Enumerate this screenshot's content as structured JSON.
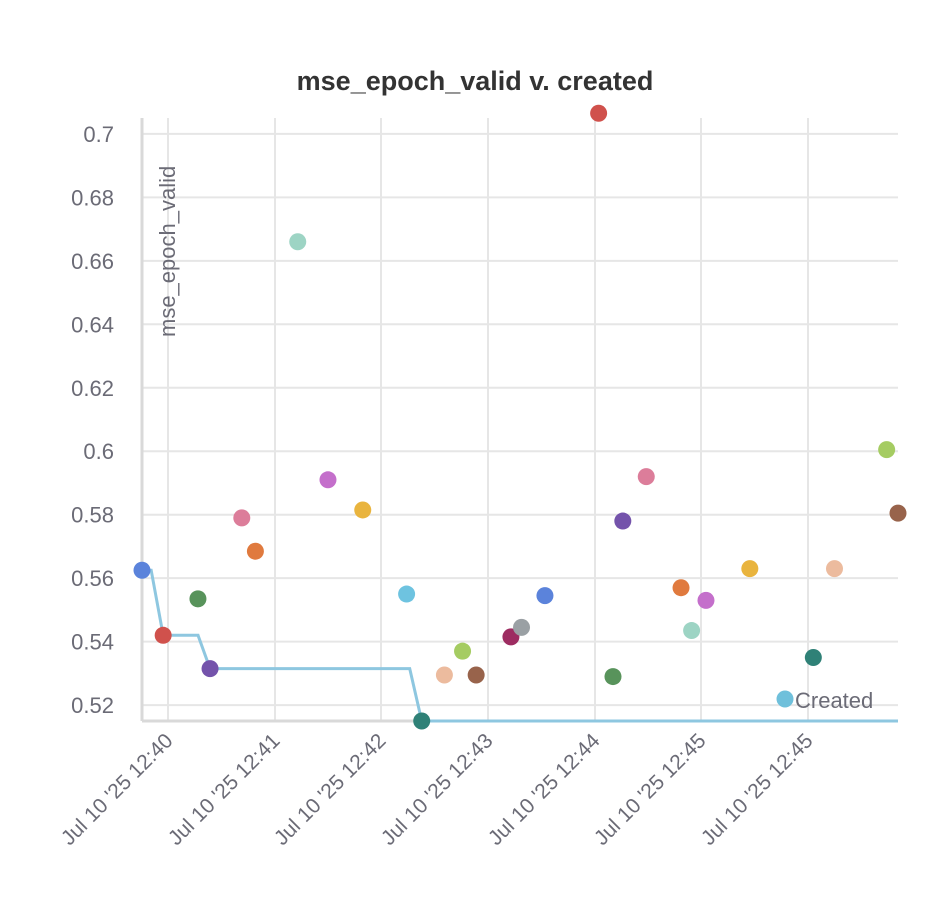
{
  "chart_data": {
    "type": "scatter",
    "title": "mse_epoch_valid v. created",
    "ylabel": "mse_epoch_valid",
    "xlabel": "",
    "ylim": [
      0.515,
      0.705
    ],
    "yticks": [
      "0.52",
      "0.54",
      "0.56",
      "0.58",
      "0.6",
      "0.62",
      "0.64",
      "0.66",
      "0.68",
      "0.7"
    ],
    "xticks": [
      "Jul 10 '25 12:40",
      "Jul 10 '25 12:41",
      "Jul 10 '25 12:42",
      "Jul 10 '25 12:43",
      "Jul 10 '25 12:44",
      "Jul 10 '25 12:45",
      "Jul 10 '25 12:45"
    ],
    "grid": true,
    "legend": {
      "label": "Created",
      "color": "#6fc0db",
      "placement": "bottom-right"
    },
    "best_line_color": "#8ec7e0",
    "points": [
      {
        "x": 0.0,
        "y": 0.5625,
        "color": "#5b83db"
      },
      {
        "x": 0.028,
        "y": 0.542,
        "color": "#d0514c"
      },
      {
        "x": 0.074,
        "y": 0.5535,
        "color": "#58935b"
      },
      {
        "x": 0.09,
        "y": 0.5315,
        "color": "#7453ab"
      },
      {
        "x": 0.132,
        "y": 0.579,
        "color": "#dc7d9a"
      },
      {
        "x": 0.15,
        "y": 0.5685,
        "color": "#e07a3e"
      },
      {
        "x": 0.206,
        "y": 0.666,
        "color": "#9dd4c4"
      },
      {
        "x": 0.246,
        "y": 0.591,
        "color": "#c46fcb"
      },
      {
        "x": 0.292,
        "y": 0.5815,
        "color": "#e9b43e"
      },
      {
        "x": 0.35,
        "y": 0.555,
        "color": "#6ec3e0"
      },
      {
        "x": 0.37,
        "y": 0.515,
        "color": "#2f8177"
      },
      {
        "x": 0.4,
        "y": 0.5295,
        "color": "#ecbb9e"
      },
      {
        "x": 0.424,
        "y": 0.537,
        "color": "#a5cc62"
      },
      {
        "x": 0.442,
        "y": 0.5295,
        "color": "#98634b"
      },
      {
        "x": 0.488,
        "y": 0.5415,
        "color": "#9d2c61"
      },
      {
        "x": 0.502,
        "y": 0.5445,
        "color": "#9aa0a4"
      },
      {
        "x": 0.533,
        "y": 0.5545,
        "color": "#5b83db"
      },
      {
        "x": 0.604,
        "y": 0.7065,
        "color": "#d0514c"
      },
      {
        "x": 0.623,
        "y": 0.529,
        "color": "#58935b"
      },
      {
        "x": 0.636,
        "y": 0.578,
        "color": "#7453ab"
      },
      {
        "x": 0.667,
        "y": 0.592,
        "color": "#dc7d9a"
      },
      {
        "x": 0.713,
        "y": 0.557,
        "color": "#e07a3e"
      },
      {
        "x": 0.727,
        "y": 0.5435,
        "color": "#9dd4c4"
      },
      {
        "x": 0.746,
        "y": 0.553,
        "color": "#c46fcb"
      },
      {
        "x": 0.804,
        "y": 0.563,
        "color": "#e9b43e"
      },
      {
        "x": 0.888,
        "y": 0.535,
        "color": "#2f8177"
      },
      {
        "x": 0.916,
        "y": 0.563,
        "color": "#ecbb9e"
      },
      {
        "x": 0.985,
        "y": 0.6005,
        "color": "#a5cc62"
      },
      {
        "x": 1.0,
        "y": 0.5805,
        "color": "#98634b"
      }
    ]
  }
}
